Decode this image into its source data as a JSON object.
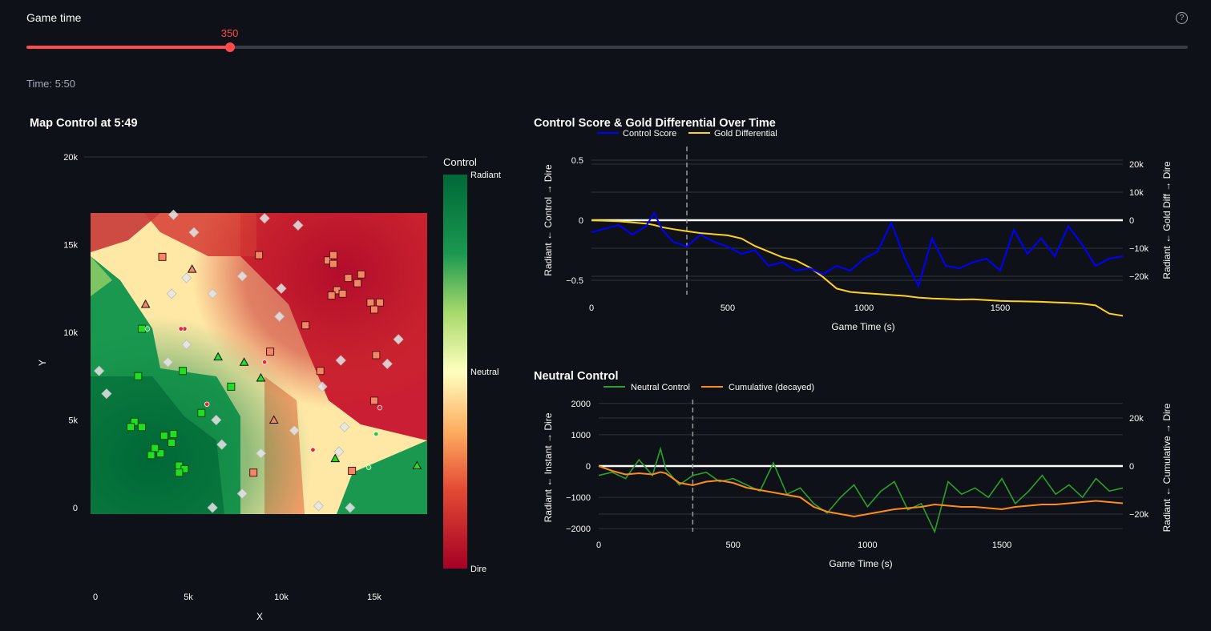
{
  "slider": {
    "label": "Game time",
    "value_text": "350",
    "value": 350,
    "min": 0,
    "max": 2000,
    "help_icon": "question-circle-icon"
  },
  "time_text": "Time: 5:50",
  "map_chart": {
    "title": "Map Control at 5:49",
    "xlabel": "X",
    "ylabel": "Y",
    "x_ticks": [
      "0",
      "5k",
      "10k",
      "15k"
    ],
    "y_ticks": [
      "0",
      "5k",
      "10k",
      "15k",
      "20k"
    ],
    "colorbar_title": "Control",
    "colorbar_top": "Radiant",
    "colorbar_mid": "Neutral",
    "colorbar_bottom": "Dire"
  },
  "control_chart": {
    "title": "Control Score & Gold Differential Over Time",
    "legend": [
      "Control Score",
      "Gold Differential"
    ],
    "xlabel": "Game Time (s)",
    "ylabel_left": "Radiant ← Control → Dire",
    "ylabel_right": "Radiant ← Gold Diff → Dire",
    "x_ticks": [
      "0",
      "500",
      "1000",
      "1500"
    ],
    "y_ticks_left": [
      "0.5",
      "0",
      "−0.5"
    ],
    "y_ticks_right": [
      "20k",
      "10k",
      "0",
      "−10k",
      "−20k"
    ]
  },
  "neutral_chart": {
    "title": "Neutral Control",
    "legend": [
      "Neutral Control",
      "Cumulative (decayed)"
    ],
    "xlabel": "Game Time (s)",
    "ylabel_left": "Radiant ← Instant → Dire",
    "ylabel_right": "Radiant ← Cumulative → Dire",
    "x_ticks": [
      "0",
      "500",
      "1000",
      "1500"
    ],
    "y_ticks_left": [
      "2000",
      "1000",
      "0",
      "−1000",
      "−2000"
    ],
    "y_ticks_right": [
      "20k",
      "0",
      "−20k"
    ]
  },
  "colors": {
    "accent": "#ff4b4b",
    "radiant": "#006837",
    "neutral": "#ffffbf",
    "dire": "#a50026",
    "control_line": "#0000ff",
    "gold_line": "#ffd21f",
    "neutral_line": "#2ca02c",
    "cumulative_line": "#ff8c1a"
  },
  "chart_data": [
    {
      "type": "scatter",
      "title": "Map Control at 5:49",
      "xlabel": "X",
      "ylabel": "Y",
      "xlim": [
        -500,
        18000
      ],
      "ylim": [
        -500,
        20500
      ],
      "series": [
        {
          "symbol": "square",
          "points": [
            [
              2500,
              10200
            ],
            [
              2300,
              7500
            ],
            [
              2100,
              4900
            ],
            [
              1900,
              4600
            ],
            [
              2500,
              4600
            ],
            [
              3700,
              4100
            ],
            [
              4200,
              4200
            ],
            [
              4100,
              3700
            ],
            [
              3500,
              3100
            ],
            [
              3200,
              3400
            ],
            [
              3000,
              3000
            ],
            [
              4500,
              2400
            ],
            [
              4800,
              2200
            ],
            [
              4500,
              2000
            ],
            [
              7300,
              6900
            ],
            [
              5700,
              5400
            ],
            [
              8500,
              2000
            ],
            [
              13800,
              2100
            ],
            [
              3600,
              14300
            ],
            [
              4700,
              7800
            ],
            [
              8800,
              14400
            ],
            [
              9400,
              8900
            ],
            [
              11300,
              10400
            ],
            [
              12500,
              14100
            ],
            [
              12800,
              14400
            ],
            [
              12800,
              13900
            ],
            [
              13000,
              12400
            ],
            [
              13600,
              13100
            ],
            [
              14300,
              13300
            ],
            [
              14100,
              12800
            ],
            [
              12700,
              12100
            ],
            [
              13300,
              12200
            ],
            [
              14800,
              11700
            ],
            [
              15300,
              11700
            ],
            [
              15000,
              11300
            ],
            [
              15100,
              8700
            ],
            [
              12100,
              7800
            ],
            [
              15000,
              6100
            ]
          ]
        },
        {
          "symbol": "triangle",
          "points": [
            [
              2700,
              11600
            ],
            [
              5200,
              13600
            ],
            [
              6600,
              8600
            ],
            [
              8000,
              8300
            ],
            [
              8900,
              7400
            ],
            [
              9600,
              5000
            ],
            [
              12900,
              2800
            ],
            [
              17300,
              2400
            ]
          ]
        },
        {
          "symbol": "diamond",
          "points": [
            [
              4200,
              16700
            ],
            [
              5300,
              15700
            ],
            [
              9100,
              16500
            ],
            [
              10900,
              16100
            ],
            [
              4900,
              13100
            ],
            [
              4100,
              12200
            ],
            [
              6300,
              12200
            ],
            [
              7900,
              13200
            ],
            [
              10000,
              12500
            ],
            [
              9900,
              10900
            ],
            [
              4900,
              9300
            ],
            [
              3900,
              8300
            ],
            [
              200,
              7800
            ],
            [
              600,
              6500
            ],
            [
              6500,
              5000
            ],
            [
              12200,
              6900
            ],
            [
              13200,
              8400
            ],
            [
              15700,
              8200
            ],
            [
              16300,
              9600
            ],
            [
              13400,
              4600
            ],
            [
              10700,
              4400
            ],
            [
              6800,
              3600
            ],
            [
              8900,
              3100
            ],
            [
              13100,
              3200
            ],
            [
              7900,
              800
            ],
            [
              6300,
              0
            ],
            [
              12000,
              100
            ],
            [
              13700,
              0
            ]
          ]
        },
        {
          "symbol": "circle",
          "points": [
            [
              2800,
              10200
            ],
            [
              4800,
              10200
            ],
            [
              4600,
              10200
            ],
            [
              9100,
              8300
            ],
            [
              6000,
              5900
            ],
            [
              15300,
              5700
            ],
            [
              15100,
              4200
            ],
            [
              11700,
              3300
            ],
            [
              14700,
              2300
            ]
          ]
        }
      ]
    },
    {
      "type": "line",
      "title": "Control Score & Gold Differential Over Time",
      "xlabel": "Game Time (s)",
      "xlim": [
        0,
        1950
      ],
      "x": [
        0,
        100,
        150,
        200,
        230,
        260,
        300,
        350,
        400,
        450,
        500,
        550,
        600,
        650,
        700,
        750,
        800,
        850,
        900,
        950,
        1000,
        1050,
        1100,
        1150,
        1200,
        1250,
        1300,
        1350,
        1400,
        1450,
        1500,
        1550,
        1600,
        1650,
        1700,
        1750,
        1800,
        1850,
        1900,
        1950
      ],
      "series": [
        {
          "name": "Control Score",
          "axis": "left",
          "ylim": [
            -0.65,
            0.55
          ],
          "values": [
            -0.1,
            -0.04,
            -0.12,
            -0.05,
            0.06,
            -0.08,
            -0.18,
            -0.22,
            -0.12,
            -0.18,
            -0.22,
            -0.28,
            -0.25,
            -0.38,
            -0.35,
            -0.42,
            -0.4,
            -0.45,
            -0.38,
            -0.42,
            -0.32,
            -0.26,
            -0.02,
            -0.32,
            -0.55,
            -0.15,
            -0.38,
            -0.4,
            -0.35,
            -0.32,
            -0.42,
            -0.08,
            -0.28,
            -0.15,
            -0.3,
            -0.05,
            -0.2,
            -0.38,
            -0.32,
            -0.3
          ]
        },
        {
          "name": "Gold Differential",
          "axis": "right",
          "ylim": [
            -26000,
            22000
          ],
          "values": [
            0,
            -400,
            -800,
            -1200,
            -1700,
            -2500,
            -3200,
            -3900,
            -4600,
            -5000,
            -5400,
            -6500,
            -9200,
            -11200,
            -13200,
            -14300,
            -16800,
            -20300,
            -24400,
            -25600,
            -26000,
            -26300,
            -26700,
            -27000,
            -27600,
            -27900,
            -28100,
            -28300,
            -28200,
            -28500,
            -28800,
            -28900,
            -29000,
            -29100,
            -29300,
            -29500,
            -29800,
            -30400,
            -33300,
            -34100
          ]
        }
      ]
    },
    {
      "type": "line",
      "title": "Neutral Control",
      "xlabel": "Game Time (s)",
      "xlim": [
        0,
        1950
      ],
      "x": [
        0,
        50,
        100,
        150,
        200,
        230,
        250,
        300,
        350,
        400,
        450,
        500,
        550,
        600,
        650,
        700,
        750,
        800,
        850,
        900,
        950,
        1000,
        1050,
        1100,
        1150,
        1200,
        1250,
        1300,
        1350,
        1400,
        1450,
        1500,
        1550,
        1600,
        1650,
        1700,
        1750,
        1800,
        1850,
        1900,
        1950
      ],
      "series": [
        {
          "name": "Neutral Control",
          "axis": "left",
          "ylim": [
            -2500,
            2200
          ],
          "values": [
            -300,
            -200,
            -400,
            200,
            -300,
            550,
            -100,
            -600,
            -300,
            -200,
            -500,
            -400,
            -600,
            -800,
            100,
            -900,
            -700,
            -1200,
            -1500,
            -1000,
            -600,
            -1300,
            -800,
            -500,
            -1400,
            -1200,
            -2100,
            -500,
            -900,
            -700,
            -1000,
            -400,
            -1200,
            -800,
            -300,
            -900,
            -600,
            -1000,
            -400,
            -800,
            -700
          ]
        },
        {
          "name": "Cumulative (decayed)",
          "axis": "right",
          "ylim": [
            -25000,
            25000
          ],
          "values": [
            0,
            -2000,
            -3500,
            -3000,
            -3500,
            -2500,
            -3000,
            -7000,
            -8000,
            -6500,
            -6000,
            -7000,
            -9000,
            -10000,
            -11000,
            -12000,
            -13000,
            -17000,
            -19000,
            -20000,
            -21000,
            -20000,
            -19000,
            -18000,
            -17500,
            -17000,
            -16000,
            -16500,
            -17000,
            -17000,
            -17500,
            -18000,
            -17000,
            -16500,
            -16000,
            -16000,
            -15500,
            -15000,
            -14500,
            -15000,
            -15500
          ]
        }
      ]
    }
  ]
}
